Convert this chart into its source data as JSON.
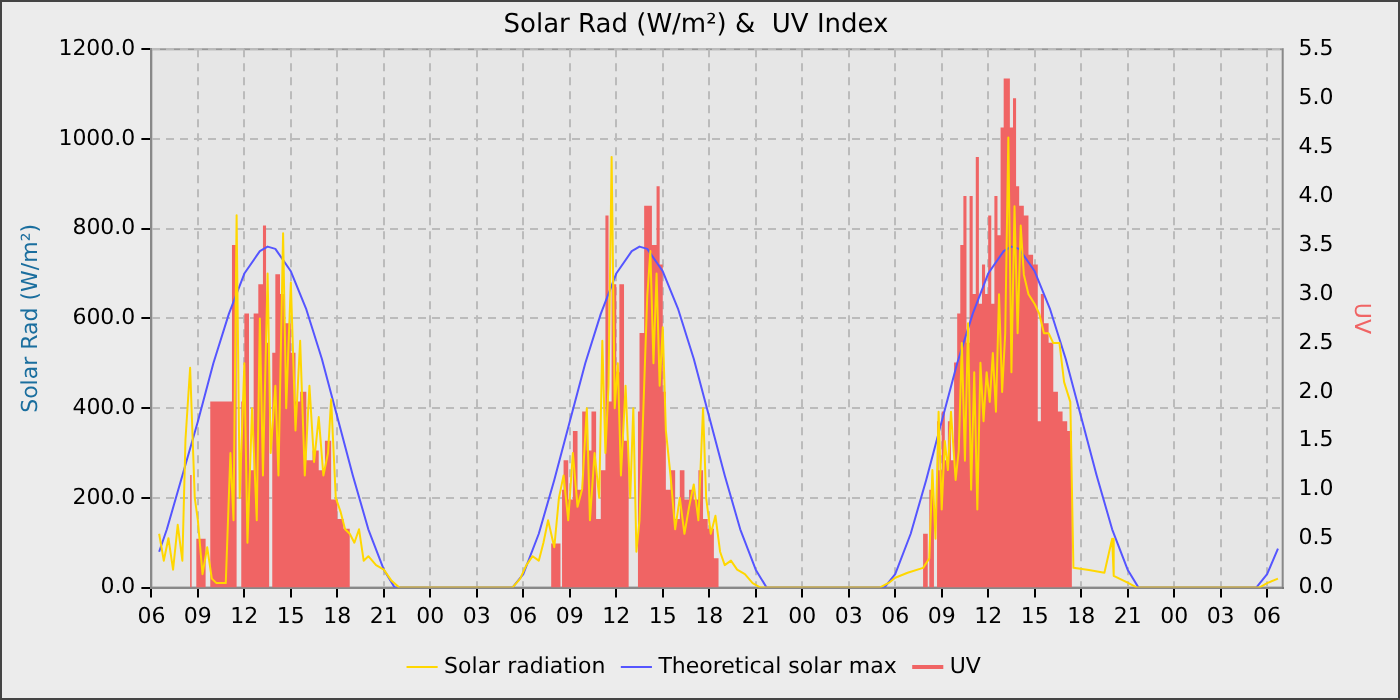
{
  "chart_data": {
    "type": "line",
    "title": "Solar Rad (W/m²) &  UV Index",
    "ylabel": "Solar Rad (W/m²)",
    "y2label": "UV",
    "xlim": [
      6,
      79
    ],
    "xticks": [
      {
        "value": 6,
        "label": "06"
      },
      {
        "value": 9,
        "label": "09"
      },
      {
        "value": 12,
        "label": "12"
      },
      {
        "value": 15,
        "label": "15"
      },
      {
        "value": 18,
        "label": "18"
      },
      {
        "value": 21,
        "label": "21"
      },
      {
        "value": 24,
        "label": "00"
      },
      {
        "value": 27,
        "label": "03"
      },
      {
        "value": 30,
        "label": "06"
      },
      {
        "value": 33,
        "label": "09"
      },
      {
        "value": 36,
        "label": "12"
      },
      {
        "value": 39,
        "label": "15"
      },
      {
        "value": 42,
        "label": "18"
      },
      {
        "value": 45,
        "label": "21"
      },
      {
        "value": 48,
        "label": "00"
      },
      {
        "value": 51,
        "label": "03"
      },
      {
        "value": 54,
        "label": "06"
      },
      {
        "value": 57,
        "label": "09"
      },
      {
        "value": 60,
        "label": "12"
      },
      {
        "value": 63,
        "label": "15"
      },
      {
        "value": 66,
        "label": "18"
      },
      {
        "value": 69,
        "label": "21"
      },
      {
        "value": 72,
        "label": "00"
      },
      {
        "value": 75,
        "label": "03"
      },
      {
        "value": 78,
        "label": "06"
      }
    ],
    "ylim": [
      0,
      1200
    ],
    "yticks": [
      {
        "value": 0,
        "label": "0.0"
      },
      {
        "value": 200,
        "label": "200.0"
      },
      {
        "value": 400,
        "label": "400.0"
      },
      {
        "value": 600,
        "label": "600.0"
      },
      {
        "value": 800,
        "label": "800.0"
      },
      {
        "value": 1000,
        "label": "1000.0"
      },
      {
        "value": 1200,
        "label": "1200.0"
      }
    ],
    "y2lim": [
      0,
      5.5
    ],
    "y2ticks": [
      {
        "value": 0,
        "label": "0.0"
      },
      {
        "value": 0.5,
        "label": "0.5"
      },
      {
        "value": 1,
        "label": "1.0"
      },
      {
        "value": 1.5,
        "label": "1.5"
      },
      {
        "value": 2,
        "label": "2.0"
      },
      {
        "value": 2.5,
        "label": "2.5"
      },
      {
        "value": 3,
        "label": "3.0"
      },
      {
        "value": 3.5,
        "label": "3.5"
      },
      {
        "value": 4,
        "label": "4.0"
      },
      {
        "value": 4.5,
        "label": "4.5"
      },
      {
        "value": 5,
        "label": "5.0"
      },
      {
        "value": 5.5,
        "label": "5.5"
      }
    ],
    "grid": true,
    "legend": "bottom",
    "series": [
      {
        "name": "Solar radiation",
        "color": "#ffd700",
        "x": [
          6.5,
          6.8,
          7.1,
          7.4,
          7.7,
          8.0,
          8.2,
          8.5,
          8.8,
          9.0,
          9.3,
          9.6,
          9.9,
          10.2,
          10.8,
          11.1,
          11.3,
          11.5,
          11.7,
          12.0,
          12.2,
          12.5,
          12.8,
          13.0,
          13.2,
          13.5,
          13.7,
          14.0,
          14.2,
          14.5,
          14.7,
          15.0,
          15.3,
          15.6,
          15.9,
          16.2,
          16.5,
          16.8,
          17.1,
          17.4,
          17.6,
          17.9,
          18.2,
          18.5,
          18.8,
          19.1,
          19.4,
          19.7,
          20.0,
          20.5,
          21.0,
          21.5,
          22.0,
          29.3,
          29.8,
          30.2,
          30.6,
          31.0,
          31.3,
          31.6,
          32.0,
          32.3,
          32.6,
          32.9,
          33.2,
          33.5,
          33.8,
          34.1,
          34.3,
          34.6,
          34.9,
          35.1,
          35.3,
          35.5,
          35.7,
          35.9,
          36.1,
          36.3,
          36.6,
          36.9,
          37.1,
          37.3,
          37.5,
          37.8,
          38.0,
          38.2,
          38.4,
          38.6,
          38.8,
          39.0,
          39.2,
          39.5,
          39.8,
          40.1,
          40.4,
          40.7,
          41.0,
          41.3,
          41.6,
          41.8,
          42.1,
          42.4,
          42.7,
          43.0,
          43.4,
          43.8,
          44.3,
          44.8,
          45.3,
          53.0,
          53.6,
          54.0,
          54.8,
          55.8,
          56.2,
          56.4,
          56.6,
          56.8,
          57.0,
          57.2,
          57.4,
          57.6,
          57.9,
          58.1,
          58.3,
          58.5,
          58.7,
          58.9,
          59.1,
          59.3,
          59.5,
          59.7,
          59.9,
          60.1,
          60.3,
          60.5,
          60.7,
          60.9,
          61.1,
          61.3,
          61.5,
          61.7,
          61.9,
          62.1,
          62.3,
          62.6,
          63.0,
          63.3,
          63.6,
          63.9,
          64.2,
          64.6,
          64.9,
          65.3,
          65.5,
          66.5,
          67.5,
          68.0,
          68.1,
          69.0,
          69.6,
          77.5,
          78.0,
          78.7
        ],
        "values": [
          120,
          60,
          110,
          40,
          140,
          60,
          330,
          490,
          200,
          150,
          30,
          90,
          20,
          10,
          10,
          300,
          150,
          830,
          200,
          500,
          100,
          400,
          150,
          600,
          250,
          700,
          300,
          450,
          250,
          790,
          400,
          680,
          350,
          550,
          250,
          450,
          280,
          380,
          250,
          300,
          420,
          200,
          170,
          130,
          120,
          100,
          130,
          60,
          70,
          50,
          40,
          15,
          0,
          0,
          20,
          50,
          70,
          60,
          100,
          150,
          90,
          200,
          250,
          150,
          300,
          180,
          220,
          400,
          150,
          300,
          200,
          550,
          300,
          450,
          960,
          400,
          500,
          250,
          450,
          200,
          400,
          80,
          150,
          450,
          650,
          750,
          500,
          700,
          450,
          580,
          350,
          250,
          130,
          200,
          120,
          180,
          230,
          150,
          400,
          200,
          120,
          160,
          80,
          50,
          60,
          40,
          30,
          10,
          0,
          0,
          11,
          22,
          33,
          44,
          65,
          262,
          109,
          392,
          174,
          327,
          262,
          392,
          240,
          305,
          545,
          283,
          589,
          218,
          480,
          174,
          501,
          371,
          480,
          414,
          523,
          392,
          654,
          436,
          567,
          1003,
          480,
          850,
          567,
          807,
          698,
          654,
          632,
          610,
          567,
          567,
          545,
          545,
          458,
          414,
          44,
          39,
          33,
          109,
          26,
          11,
          0,
          0,
          10,
          20
        ]
      },
      {
        "name": "Theoretical solar max",
        "color": "#5555ff",
        "x": [
          6.5,
          7,
          8,
          9,
          10,
          11,
          12,
          13,
          13.5,
          14,
          15,
          16,
          17,
          18,
          19,
          20,
          21,
          21.7,
          29.3,
          30,
          31,
          32,
          33,
          34,
          35,
          36,
          37,
          37.5,
          38,
          39,
          40,
          41,
          42,
          43,
          44,
          45,
          45.7,
          53.3,
          54,
          55,
          56,
          57,
          58,
          59,
          60,
          61,
          61.5,
          62,
          63,
          64,
          65,
          66,
          67,
          68,
          69,
          69.7,
          77.3,
          78,
          78.7
        ],
        "values": [
          80,
          130,
          250,
          370,
          500,
          610,
          700,
          750,
          760,
          755,
          705,
          620,
          510,
          380,
          250,
          130,
          40,
          0,
          0,
          30,
          120,
          240,
          370,
          500,
          610,
          700,
          750,
          760,
          755,
          705,
          620,
          510,
          380,
          250,
          130,
          40,
          0,
          0,
          30,
          120,
          240,
          370,
          500,
          610,
          700,
          750,
          760,
          755,
          705,
          620,
          510,
          380,
          250,
          130,
          40,
          0,
          0,
          30,
          87
        ]
      },
      {
        "name": "UV",
        "type": "area",
        "axis": "y2",
        "color": "#f06464",
        "x": [
          6.5,
          8.5,
          8.6,
          8.9,
          9.5,
          9.8,
          11.2,
          11.5,
          11.8,
          12.0,
          12.3,
          12.6,
          12.9,
          13.2,
          13.4,
          13.6,
          13.8,
          14.0,
          14.3,
          14.6,
          15.0,
          15.3,
          15.6,
          16.0,
          16.4,
          16.8,
          17.2,
          17.6,
          18.0,
          18.4,
          18.8,
          19.0,
          31.8,
          31.9,
          32.4,
          32.5,
          32.6,
          32.9,
          33.2,
          33.5,
          33.8,
          34.1,
          34.4,
          34.7,
          35.0,
          35.3,
          35.5,
          35.7,
          36.0,
          36.2,
          36.5,
          36.8,
          37.0,
          37.4,
          37.5,
          37.8,
          38.0,
          38.3,
          38.6,
          38.8,
          39.0,
          39.2,
          39.5,
          39.8,
          40.1,
          40.4,
          40.7,
          41.0,
          41.3,
          41.6,
          41.9,
          42.3,
          42.6,
          43.0,
          55.8,
          55.9,
          56.1,
          56.2,
          56.5,
          56.7,
          56.8,
          57.0,
          57.2,
          57.4,
          57.6,
          57.8,
          58.0,
          58.2,
          58.4,
          58.6,
          58.8,
          59.0,
          59.2,
          59.4,
          59.6,
          59.8,
          60.0,
          60.2,
          60.4,
          60.6,
          60.8,
          61.0,
          61.2,
          61.4,
          61.6,
          61.8,
          62.0,
          62.3,
          62.6,
          62.9,
          63.2,
          63.4,
          63.6,
          63.9,
          64.2,
          64.5,
          64.8,
          65.1,
          65.4,
          65.5,
          78.7
        ],
        "values": [
          0,
          0,
          1.15,
          0,
          0.5,
          0,
          1.9,
          3.5,
          0,
          1.9,
          2.8,
          1.2,
          2.8,
          3.1,
          3.7,
          2.5,
          0,
          2.4,
          3.2,
          3.0,
          2.7,
          2.4,
          1.9,
          2.0,
          1.3,
          1.4,
          1.2,
          1.5,
          0.9,
          0.7,
          0.6,
          0,
          0,
          0.45,
          0.45,
          0,
          1.0,
          1.3,
          0.9,
          1.6,
          1.0,
          1.8,
          1.4,
          1.8,
          0.7,
          1.2,
          3.8,
          1.9,
          3.1,
          2.2,
          3.1,
          1.5,
          0,
          0,
          1.8,
          2.6,
          3.9,
          3.9,
          3.5,
          4.1,
          3.3,
          2.0,
          1.0,
          1.2,
          0.7,
          1.2,
          0.9,
          1.0,
          0.9,
          1.2,
          0.7,
          0.6,
          0.3,
          0,
          0,
          0.55,
          0.55,
          0,
          1.0,
          0,
          1.7,
          1.2,
          1.8,
          1.3,
          1.7,
          1.3,
          2.3,
          2.8,
          3.5,
          4.0,
          2.5,
          4.0,
          3.0,
          4.4,
          2.9,
          3.3,
          3.0,
          3.8,
          2.9,
          4.0,
          3.6,
          4.7,
          5.2,
          5.2,
          4.7,
          5.0,
          4.1,
          3.9,
          3.8,
          3.4,
          3.3,
          1.7,
          3.0,
          2.7,
          2.5,
          2.0,
          1.8,
          1.7,
          1.6,
          0,
          0
        ]
      }
    ]
  }
}
